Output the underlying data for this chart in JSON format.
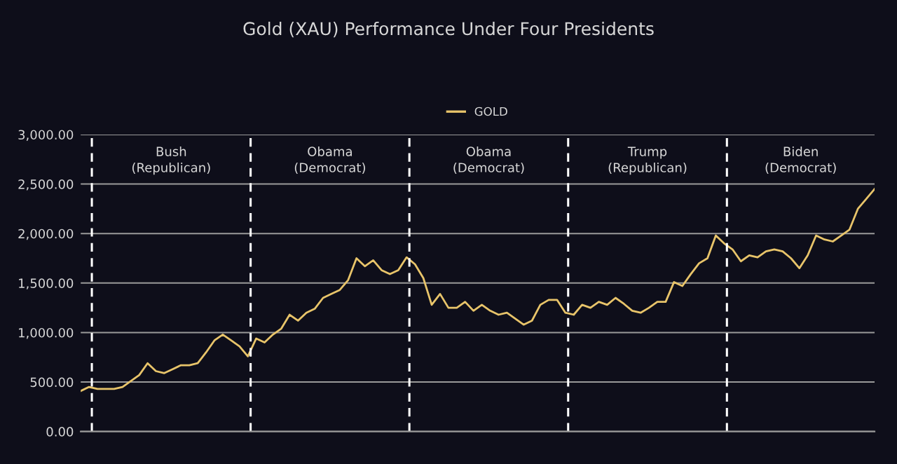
{
  "chart_data": {
    "type": "line",
    "title": "Gold (XAU) Performance Under Four Presidents",
    "categories": [
      null,
      null,
      null,
      null,
      null,
      null,
      null,
      null,
      null,
      null,
      null,
      null,
      null,
      null,
      null,
      null,
      null,
      null,
      null,
      null,
      null,
      null,
      null,
      null,
      null,
      null,
      null,
      null,
      null,
      null,
      null,
      null,
      null,
      null,
      null,
      null,
      null,
      null,
      null,
      null,
      null,
      null,
      null,
      null,
      null,
      null,
      null,
      null,
      null,
      null,
      null,
      null,
      null,
      null,
      null,
      null,
      null,
      null,
      null,
      null,
      null,
      null,
      null,
      null,
      null,
      null,
      null,
      null,
      null,
      null,
      null,
      null,
      null,
      null,
      null,
      null,
      null,
      null,
      null,
      null,
      null,
      null,
      null,
      null,
      null,
      null,
      null,
      null,
      null,
      null,
      null,
      null,
      null,
      null,
      null,
      null
    ],
    "series": [
      {
        "name": "GOLD",
        "color": "#e8c46a",
        "values": [
          410,
          450,
          430,
          430,
          430,
          450,
          510,
          570,
          690,
          610,
          590,
          630,
          670,
          670,
          690,
          800,
          920,
          980,
          920,
          860,
          760,
          940,
          900,
          980,
          1040,
          1180,
          1120,
          1200,
          1240,
          1350,
          1390,
          1430,
          1530,
          1750,
          1670,
          1730,
          1630,
          1590,
          1630,
          1760,
          1690,
          1550,
          1280,
          1390,
          1250,
          1250,
          1310,
          1220,
          1280,
          1220,
          1180,
          1200,
          1140,
          1080,
          1120,
          1280,
          1330,
          1330,
          1200,
          1180,
          1280,
          1250,
          1310,
          1280,
          1350,
          1290,
          1220,
          1200,
          1250,
          1310,
          1310,
          1510,
          1470,
          1590,
          1700,
          1750,
          1980,
          1900,
          1840,
          1720,
          1780,
          1760,
          1820,
          1840,
          1820,
          1750,
          1650,
          1780,
          1980,
          1940,
          1920,
          1980,
          2040,
          2250,
          2350,
          2450
        ]
      }
    ],
    "ylim": [
      0,
      3000
    ],
    "yticks": [
      {
        "value": 0,
        "label": "0.00"
      },
      {
        "value": 500,
        "label": "500.00"
      },
      {
        "value": 1000,
        "label": "1,000.00"
      },
      {
        "value": 1500,
        "label": "1,500.00"
      },
      {
        "value": 2000,
        "label": "2,000.00"
      },
      {
        "value": 2500,
        "label": "2,500.00"
      },
      {
        "value": 3000,
        "label": "3,000.00"
      }
    ],
    "annotations": [
      "Bush\n(Republican)",
      "Obama\n(Democrat)",
      "Obama\n(Democrat)",
      "Trump\n(Republican)",
      "Biden\n(Democrat)"
    ],
    "grid": "y",
    "legend": "top",
    "tick_labels": "y",
    "line_style": "solid",
    "marker": "none"
  }
}
